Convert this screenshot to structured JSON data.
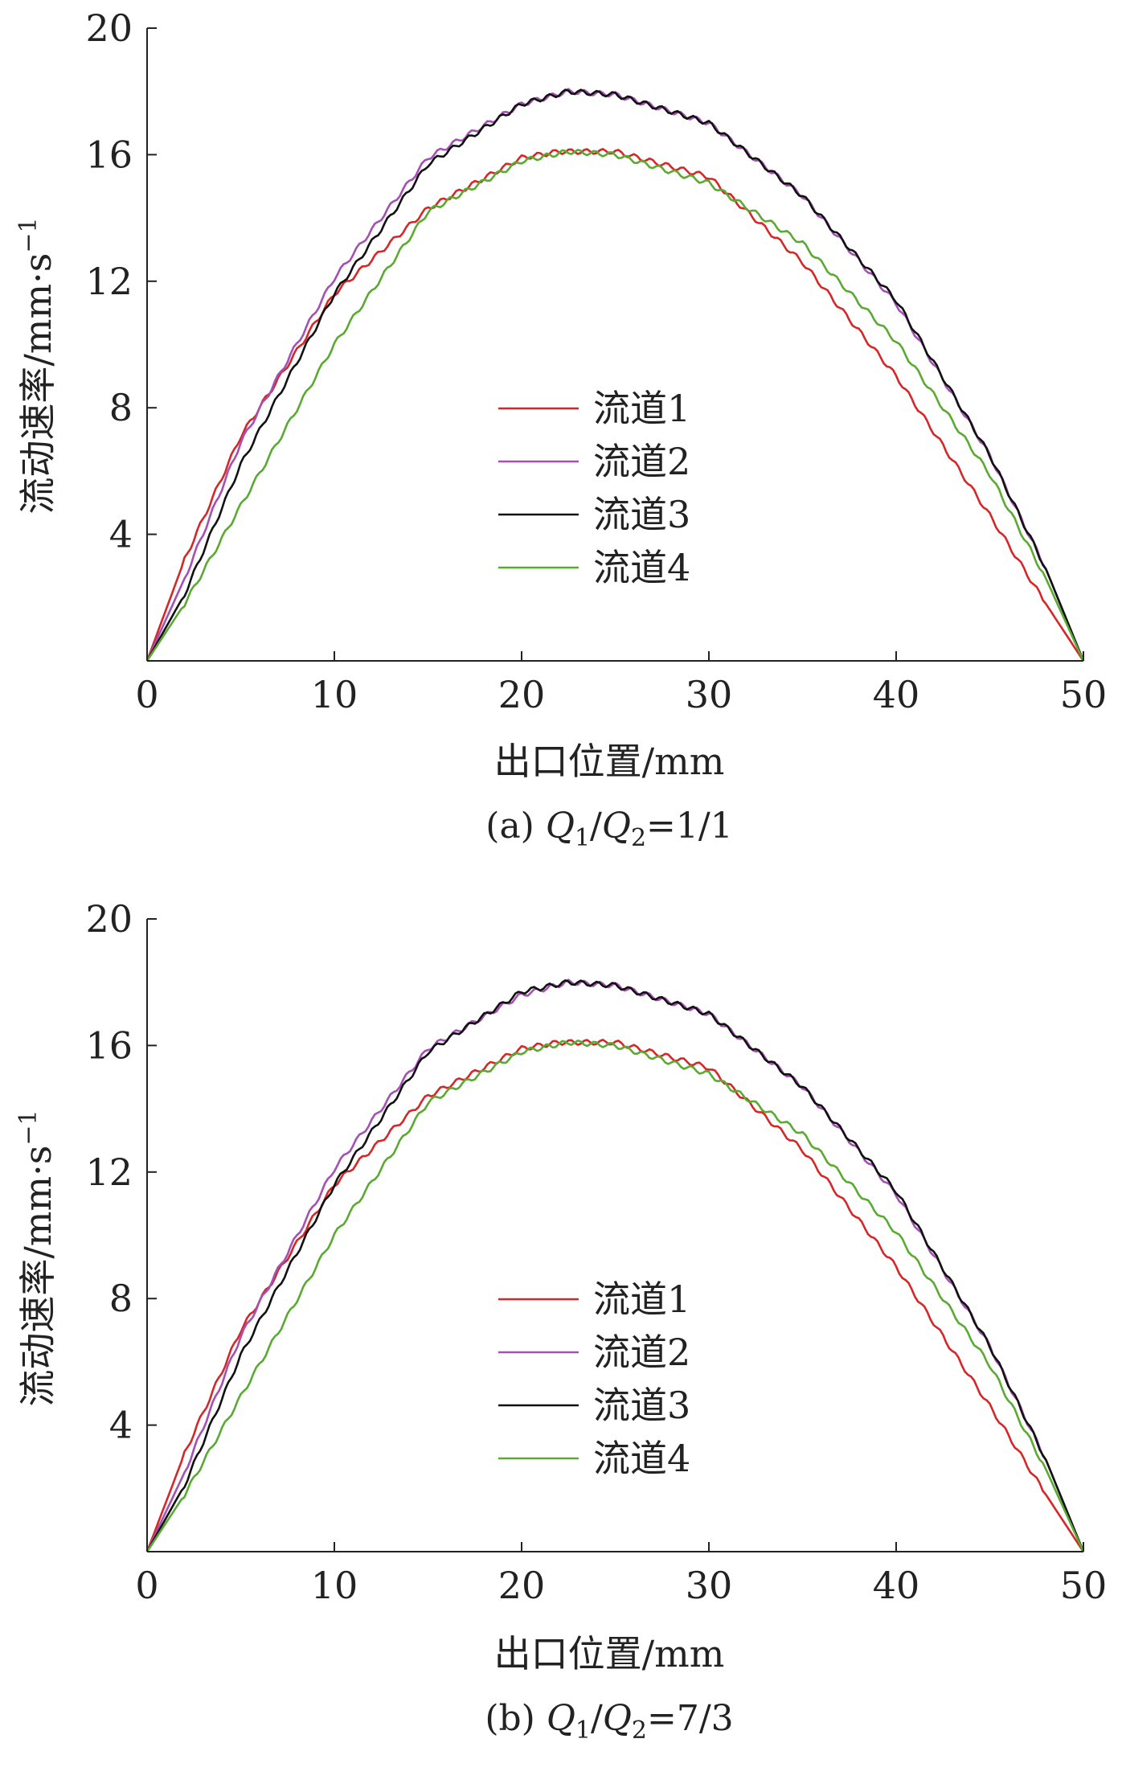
{
  "chart_data": [
    {
      "type": "line",
      "caption": "(a) Q1/Q2=1/1",
      "caption_prefix": "(a)",
      "caption_q": "Q",
      "caption_sub1": "1",
      "caption_slash": "/",
      "caption_sub2": "2",
      "caption_ratio": "=1/1",
      "xlabel": "出口位置/mm",
      "ylabel": "流动速率/mm·s",
      "ylabel_sup": "−1",
      "xlim": [
        0,
        50
      ],
      "ylim": [
        0,
        20
      ],
      "xticks": [
        "0",
        "10",
        "20",
        "30",
        "40",
        "50"
      ],
      "yticks": [
        "4",
        "8",
        "12",
        "16",
        "20"
      ],
      "grid": false,
      "legend_position": "center",
      "series": [
        {
          "name": "流道1",
          "color": "#d62728",
          "x": [
            0,
            2,
            5,
            10,
            15,
            20,
            22,
            25,
            30,
            35,
            40,
            45,
            48,
            50
          ],
          "y": [
            0,
            3.2,
            7.1,
            11.6,
            14.3,
            15.9,
            16.1,
            16.1,
            15.3,
            12.6,
            9.0,
            4.6,
            1.8,
            0
          ]
        },
        {
          "name": "流道2",
          "color": "#a450b4",
          "x": [
            0,
            2,
            5,
            10,
            15,
            20,
            22.5,
            25,
            30,
            35,
            40,
            45,
            48,
            50
          ],
          "y": [
            0,
            2.6,
            6.9,
            12.1,
            15.9,
            17.6,
            18.0,
            17.9,
            17.0,
            14.7,
            11.3,
            6.5,
            2.9,
            0
          ]
        },
        {
          "name": "流道3",
          "color": "#111111",
          "x": [
            0,
            2,
            5,
            10,
            15,
            20,
            22.5,
            25,
            30,
            35,
            40,
            45,
            48,
            50
          ],
          "y": [
            0,
            2.1,
            6.2,
            11.6,
            15.7,
            17.6,
            18.0,
            17.9,
            17.0,
            14.7,
            11.4,
            6.5,
            2.9,
            0
          ]
        },
        {
          "name": "流道4",
          "color": "#5aaa32",
          "x": [
            0,
            2,
            5,
            10,
            15,
            20,
            22.5,
            25,
            30,
            35,
            40,
            45,
            48,
            50
          ],
          "y": [
            0,
            1.8,
            4.9,
            10.0,
            14.2,
            15.8,
            16.1,
            16.0,
            15.1,
            13.2,
            10.1,
            5.9,
            2.6,
            0
          ]
        }
      ]
    },
    {
      "type": "line",
      "caption": "(b) Q1/Q2=7/3",
      "caption_prefix": "(b)",
      "caption_q": "Q",
      "caption_sub1": "1",
      "caption_slash": "/",
      "caption_sub2": "2",
      "caption_ratio": "=7/3",
      "xlabel": "出口位置/mm",
      "ylabel": "流动速率/mm·s",
      "ylabel_sup": "−1",
      "xlim": [
        0,
        50
      ],
      "ylim": [
        0,
        20
      ],
      "xticks": [
        "0",
        "10",
        "20",
        "30",
        "40",
        "50"
      ],
      "yticks": [
        "4",
        "8",
        "12",
        "16",
        "20"
      ],
      "grid": false,
      "legend_position": "center",
      "series": [
        {
          "name": "流道1",
          "color": "#d62728",
          "x": [
            0,
            2,
            5,
            10,
            15,
            20,
            22,
            25,
            30,
            35,
            40,
            45,
            48,
            50
          ],
          "y": [
            0,
            3.1,
            7.0,
            11.6,
            14.4,
            15.9,
            16.1,
            16.1,
            15.3,
            12.7,
            9.0,
            4.6,
            1.8,
            0
          ]
        },
        {
          "name": "流道2",
          "color": "#a450b4",
          "x": [
            0,
            2,
            5,
            10,
            15,
            20,
            22.5,
            25,
            30,
            35,
            40,
            45,
            48,
            50
          ],
          "y": [
            0,
            2.5,
            6.8,
            12.1,
            15.9,
            17.6,
            18.0,
            17.9,
            17.0,
            14.7,
            11.3,
            6.5,
            2.9,
            0
          ]
        },
        {
          "name": "流道3",
          "color": "#111111",
          "x": [
            0,
            2,
            5,
            10,
            15,
            20,
            22.5,
            25,
            30,
            35,
            40,
            45,
            48,
            50
          ],
          "y": [
            0,
            2.1,
            6.2,
            11.6,
            15.8,
            17.7,
            18.0,
            17.9,
            17.0,
            14.7,
            11.4,
            6.5,
            2.9,
            0
          ]
        },
        {
          "name": "流道4",
          "color": "#5aaa32",
          "x": [
            0,
            2,
            5,
            10,
            15,
            20,
            22.5,
            25,
            30,
            35,
            40,
            45,
            48,
            50
          ],
          "y": [
            0,
            1.8,
            4.9,
            10.0,
            14.2,
            15.8,
            16.1,
            16.0,
            15.1,
            13.2,
            10.1,
            5.9,
            2.6,
            0
          ]
        }
      ]
    }
  ]
}
